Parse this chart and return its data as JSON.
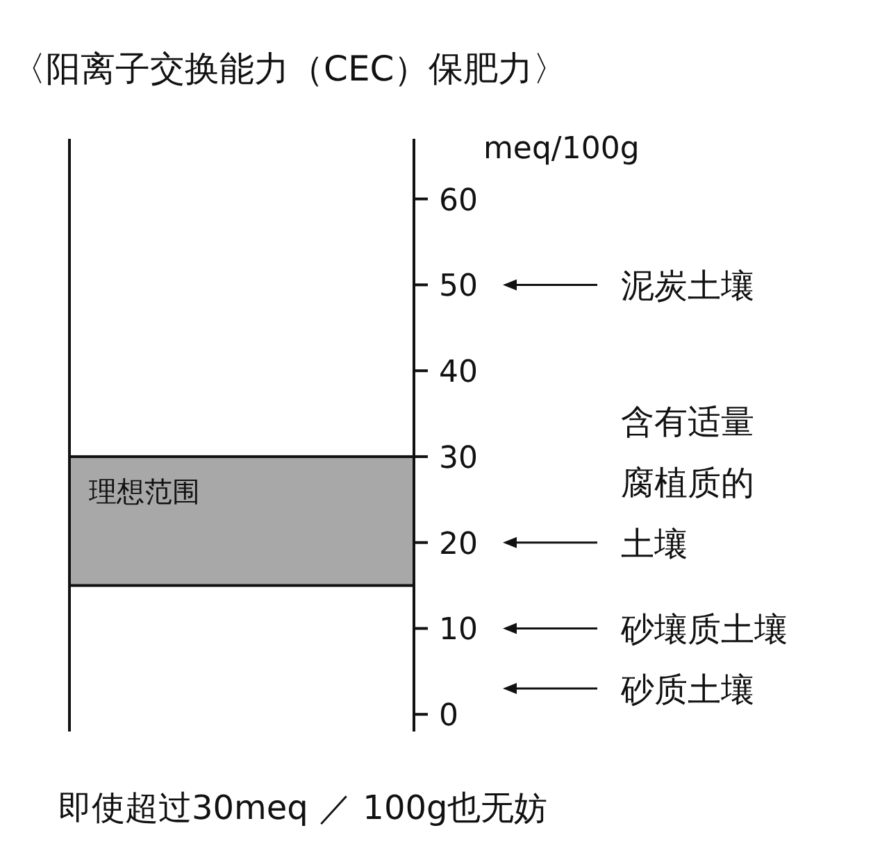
{
  "chart_data": {
    "type": "bar",
    "title": "〈阳离子交换能力（CEC）保肥力〉",
    "ylabel": "meq/100g",
    "categories": [
      null
    ],
    "values": [
      15
    ],
    "base": [
      15
    ],
    "color": "#a8a8a8",
    "ylim": [
      -2,
      67
    ],
    "yticks": [
      0,
      10,
      20,
      30,
      40,
      50,
      60
    ],
    "ref_lines": [
      {
        "axis": "y",
        "value": 50,
        "label": "泥炭土壤"
      },
      {
        "axis": "y",
        "value": 20,
        "label": "含有适量腐植质的土壤"
      },
      {
        "axis": "y",
        "value": 10,
        "label": "砂壤质土壤"
      },
      {
        "axis": "y",
        "value": 3,
        "label": "砂质土壤"
      }
    ],
    "annotations": [
      "理想范围",
      "即使超过30meq ／ 100g也无妨"
    ]
  }
}
